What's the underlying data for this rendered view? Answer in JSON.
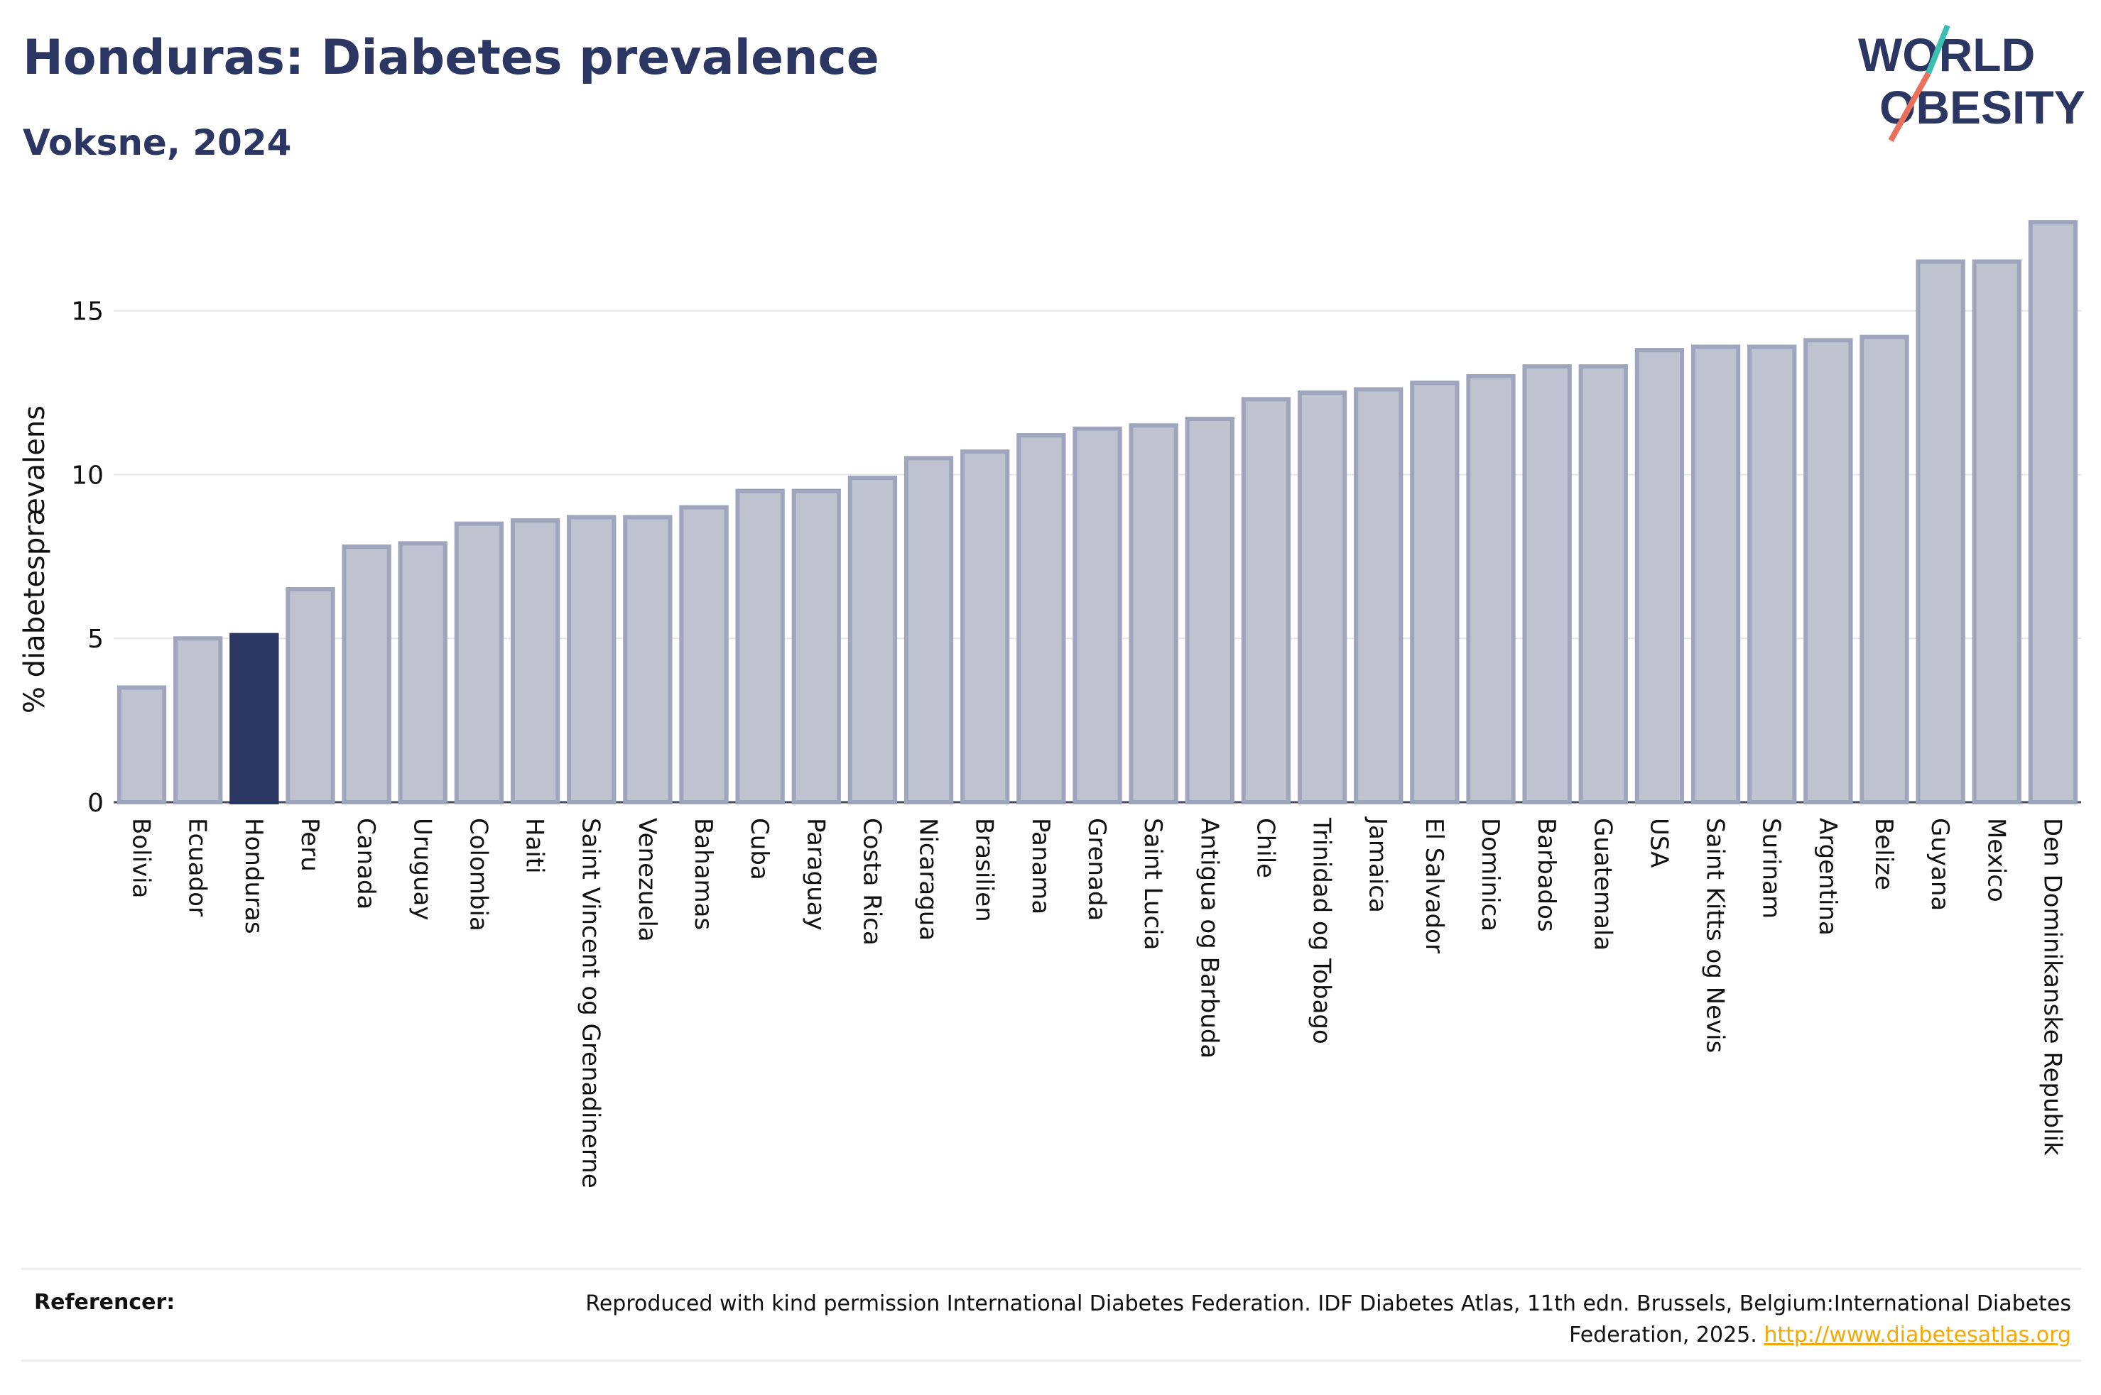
{
  "title": "Honduras: Diabetes prevalence",
  "subtitle": "Voksne, 2024",
  "logo": {
    "line1": "WORLD",
    "line2": "OBESITY"
  },
  "references": {
    "label": "Referencer:",
    "text": "Reproduced with kind permission International Diabetes Federation. IDF Diabetes Atlas, 11th edn. Brussels, Belgium:International Diabetes Federation, 2025.",
    "link": "http://www.diabetesatlas.org"
  },
  "colors": {
    "bar": "#bfc3d0",
    "bar_border": "#9fa5bd",
    "highlight": "#2b3663",
    "text": "#2b3663",
    "link": "#f5a800"
  },
  "chart_data": {
    "type": "bar",
    "ylabel": "% diabetesprævalens",
    "ylim": [
      0,
      18.2
    ],
    "yticks": [
      0,
      5,
      10,
      15
    ],
    "grid": true,
    "highlight": "Honduras",
    "categories": [
      "Bolivia",
      "Ecuador",
      "Honduras",
      "Peru",
      "Canada",
      "Uruguay",
      "Colombia",
      "Haiti",
      "Saint Vincent og Grenadinerne",
      "Venezuela",
      "Bahamas",
      "Cuba",
      "Paraguay",
      "Costa Rica",
      "Nicaragua",
      "Brasilien",
      "Panama",
      "Grenada",
      "Saint Lucia",
      "Antigua og Barbuda",
      "Chile",
      "Trinidad og Tobago",
      "Jamaica",
      "El Salvador",
      "Dominica",
      "Barbados",
      "Guatemala",
      "USA",
      "Saint Kitts og Nevis",
      "Surinam",
      "Argentina",
      "Belize",
      "Guyana",
      "Mexico",
      "Den Dominikanske Republik"
    ],
    "values": [
      3.5,
      5.0,
      5.1,
      6.5,
      7.8,
      7.9,
      8.5,
      8.6,
      8.7,
      8.7,
      9.0,
      9.5,
      9.5,
      9.9,
      10.5,
      10.7,
      11.2,
      11.4,
      11.5,
      11.7,
      12.3,
      12.5,
      12.6,
      12.8,
      13.0,
      13.3,
      13.3,
      13.8,
      13.9,
      13.9,
      14.1,
      14.2,
      16.5,
      16.5,
      17.7
    ]
  }
}
